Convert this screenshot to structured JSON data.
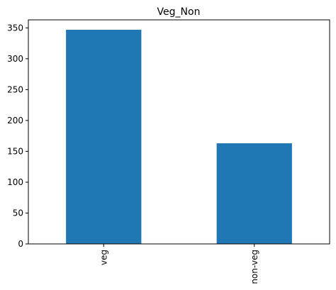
{
  "chart_data": {
    "type": "bar",
    "title": "Veg_Non",
    "categories": [
      "veg",
      "non-veg"
    ],
    "values": [
      347,
      163
    ],
    "xlabel": "",
    "ylabel": "",
    "ylim": [
      0,
      363
    ],
    "yticks": [
      0,
      50,
      100,
      150,
      200,
      250,
      300,
      350
    ],
    "ytick_labels": [
      "0",
      "50",
      "100",
      "150",
      "200",
      "250",
      "300",
      "350"
    ],
    "xtick_rotation": "vertical",
    "grid": false,
    "legend": "none",
    "bar_color": "#1f77b4"
  }
}
